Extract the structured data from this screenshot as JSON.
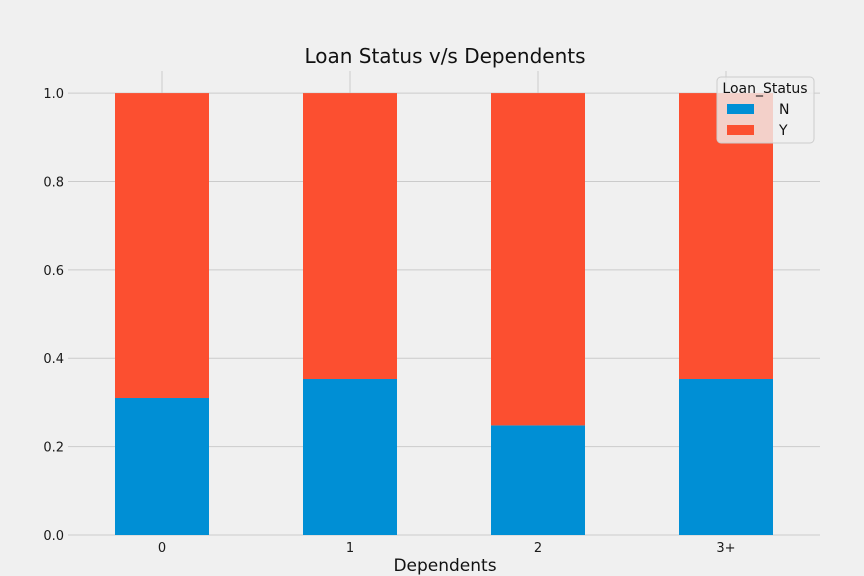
{
  "chart_data": {
    "type": "bar",
    "stacked": true,
    "title": "Loan Status v/s Dependents",
    "xlabel": "Dependents",
    "ylabel": "",
    "categories": [
      "0",
      "1",
      "2",
      "3+"
    ],
    "series": [
      {
        "name": "N",
        "color": "#008fd5",
        "values": [
          0.31,
          0.353,
          0.248,
          0.353
        ]
      },
      {
        "name": "Y",
        "color": "#fc4f30",
        "values": [
          0.69,
          0.647,
          0.752,
          0.647
        ]
      }
    ],
    "ylim": [
      0,
      1.05
    ],
    "yticks": [
      "0.0",
      "0.2",
      "0.4",
      "0.6",
      "0.8",
      "1.0"
    ],
    "grid": true,
    "legend": {
      "title": "Loan_Status",
      "position": "top-right"
    }
  }
}
